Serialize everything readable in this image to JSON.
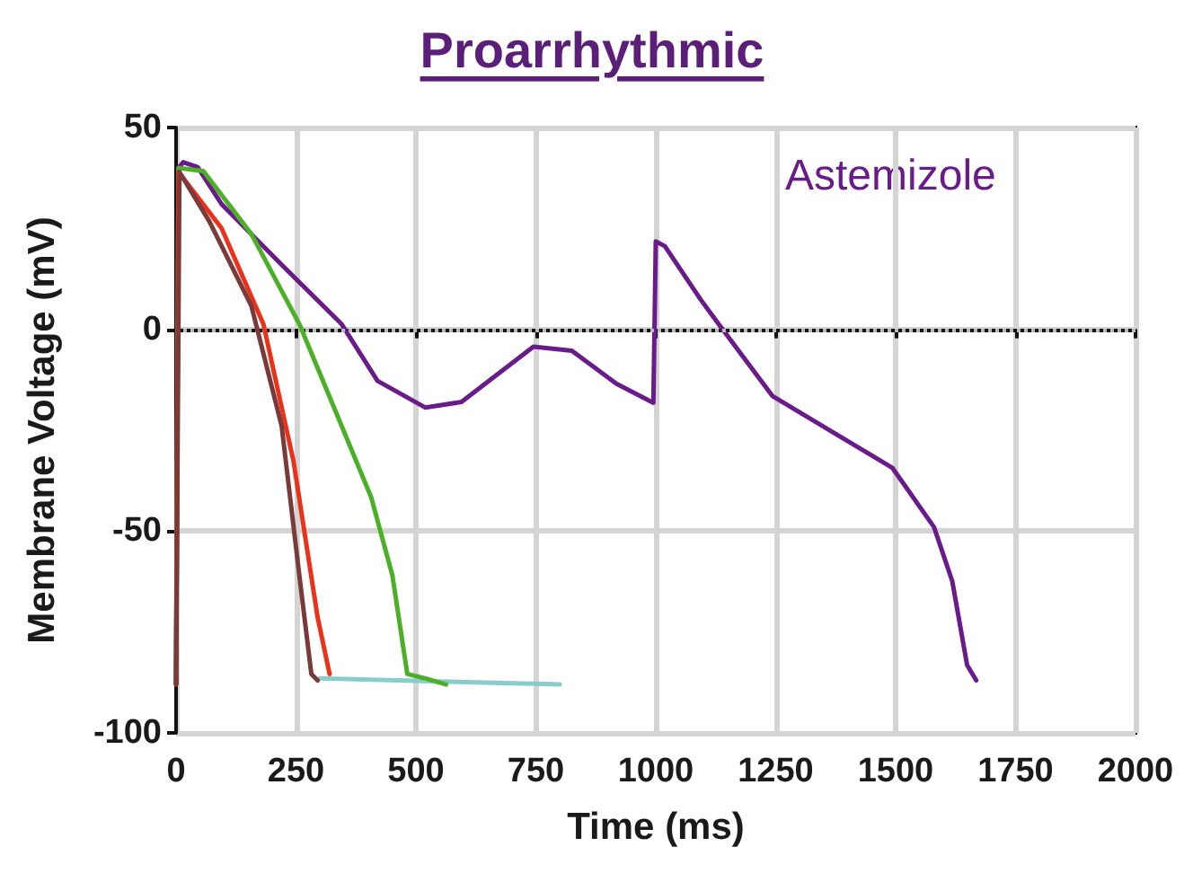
{
  "chart_data": {
    "type": "line",
    "title": "Proarrhythmic",
    "xlabel": "Time (ms)",
    "ylabel": "Membrane Voltage (mV)",
    "xlim": [
      0,
      2000
    ],
    "xticks": [
      0,
      250,
      500,
      750,
      1000,
      1250,
      1500,
      1750,
      2000
    ],
    "ylim": [
      -100,
      50
    ],
    "yticks": [
      -100,
      -50,
      0,
      50
    ],
    "grid": true,
    "legend": false,
    "marker": "none",
    "line_style": "solid",
    "ref_lines": [
      {
        "axis": "y",
        "value": 0,
        "label": null,
        "color": "#bbbbbb",
        "line_style": "dotted"
      }
    ],
    "series": [
      {
        "name": null,
        "color": "#88cccc",
        "x": [
          300,
          800
        ],
        "values": [
          -86.5,
          -88
        ]
      },
      {
        "name": "Astemizole",
        "color": "#6a1b8a",
        "x": [
          0,
          5,
          15,
          45,
          95,
          220,
          345,
          420,
          520,
          595,
          745,
          825,
          918,
          995,
          1000,
          1019,
          1094,
          1131,
          1243,
          1368,
          1493,
          1580,
          1618,
          1649,
          1668
        ],
        "values": [
          -88,
          40,
          41.4,
          40.2,
          31,
          16,
          1.3,
          -12.8,
          -19.4,
          -18,
          -4.3,
          -5.3,
          -13.5,
          -18.2,
          21.8,
          20.6,
          7.3,
          1.3,
          -16.5,
          -25.4,
          -34.3,
          -49,
          -62.4,
          -83.2,
          -87
        ]
      },
      {
        "name": null,
        "color": "#4caf28",
        "x": [
          0,
          5,
          57,
          157,
          257,
          345,
          407,
          451,
          482,
          520,
          563
        ],
        "values": [
          -88,
          40,
          39.2,
          23.6,
          1.3,
          -23.9,
          -41.7,
          -61,
          -85.4,
          -86.5,
          -88
        ]
      },
      {
        "name": null,
        "color": "#e8321a",
        "x": [
          0,
          5,
          95,
          182,
          245,
          295,
          320
        ],
        "values": [
          -88,
          39,
          25,
          1.3,
          -32.8,
          -71.3,
          -85.4
        ]
      },
      {
        "name": null,
        "color": "#7b3a3a",
        "x": [
          0,
          7,
          70,
          157,
          220,
          257,
          282,
          295
        ],
        "values": [
          -88,
          39,
          26.6,
          5.8,
          -23.9,
          -61,
          -85.4,
          -87
        ]
      }
    ]
  }
}
